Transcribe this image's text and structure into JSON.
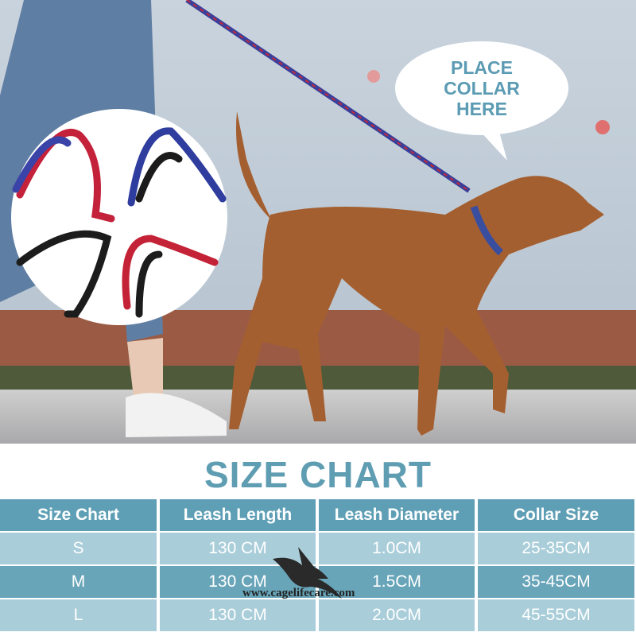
{
  "bubble": {
    "lines": [
      "PLACE",
      "COLLAR",
      "HERE"
    ]
  },
  "title": "SIZE CHART",
  "table": {
    "headers": [
      "Size Chart",
      "Leash Length",
      "Leash Diameter",
      "Collar Size"
    ],
    "rows": [
      [
        "S",
        "130 CM",
        "1.0CM",
        "25-35CM"
      ],
      [
        "M",
        "130 CM",
        "1.5CM",
        "35-45CM"
      ],
      [
        "L",
        "130 CM",
        "2.0CM",
        "45-55CM"
      ]
    ]
  },
  "watermark": "www.cagelifecare.com",
  "colors": {
    "accent": "#5f9db2",
    "header": "#5e9fb5",
    "row_light": "#a9cdd9",
    "row_dark": "#68a5b9"
  }
}
